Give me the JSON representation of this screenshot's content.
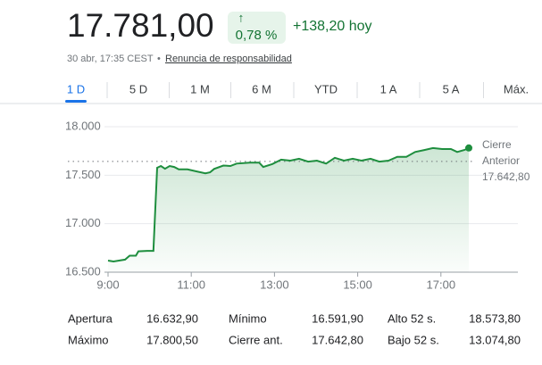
{
  "header": {
    "price": "17.781,00",
    "change_arrow": "↑",
    "change_percent": "0,78 %",
    "change_abs": "+138,20 hoy",
    "timestamp": "30 abr, 17:35 CEST",
    "separator": "•",
    "disclaimer": "Renuncia de responsabilidad"
  },
  "tabs": [
    "1 D",
    "5 D",
    "1 M",
    "6 M",
    "YTD",
    "1 A",
    "5 A",
    "Máx."
  ],
  "chart_data": {
    "type": "line",
    "color": "#1e8e3e",
    "x": [
      9.0,
      9.13,
      9.41,
      9.52,
      9.67,
      9.73,
      9.94,
      10.09,
      10.18,
      10.27,
      10.37,
      10.48,
      10.59,
      10.7,
      10.91,
      11.12,
      11.34,
      11.45,
      11.55,
      11.77,
      11.94,
      12.09,
      12.41,
      12.63,
      12.73,
      12.95,
      13.16,
      13.38,
      13.59,
      13.81,
      14.02,
      14.24,
      14.45,
      14.67,
      14.88,
      15.09,
      15.31,
      15.52,
      15.74,
      15.95,
      16.17,
      16.38,
      16.6,
      16.81,
      17.03,
      17.24,
      17.39,
      17.56,
      17.67
    ],
    "values": [
      16620,
      16610,
      16630,
      16670,
      16670,
      16715,
      16720,
      16720,
      17577,
      17595,
      17567,
      17595,
      17585,
      17560,
      17560,
      17540,
      17520,
      17530,
      17565,
      17600,
      17595,
      17620,
      17630,
      17630,
      17585,
      17615,
      17660,
      17650,
      17670,
      17640,
      17650,
      17620,
      17680,
      17650,
      17670,
      17650,
      17670,
      17640,
      17650,
      17690,
      17690,
      17740,
      17760,
      17780,
      17770,
      17770,
      17740,
      17760,
      17781
    ],
    "xlim": [
      9,
      18.85
    ],
    "xticks": [
      {
        "value": 9,
        "label": "9:00"
      },
      {
        "value": 11,
        "label": "11:00"
      },
      {
        "value": 13,
        "label": "13:00"
      },
      {
        "value": 15,
        "label": "15:00"
      },
      {
        "value": 17,
        "label": "17:00"
      }
    ],
    "ylim": [
      16500,
      18000
    ],
    "yticks": [
      {
        "value": 16500,
        "label": "16.500"
      },
      {
        "value": 17000,
        "label": "17.000"
      },
      {
        "value": 17500,
        "label": "17.500"
      },
      {
        "value": 18000,
        "label": "18.000"
      }
    ],
    "grid": true,
    "reference_value": 17642.8,
    "reference_label": [
      "Cierre",
      "Anterior"
    ],
    "reference_value_label": "17.642,80"
  },
  "stats": {
    "rows": [
      [
        "Apertura",
        "16.632,90",
        "Mínimo",
        "16.591,90",
        "Alto 52 s.",
        "18.573,80"
      ],
      [
        "Máximo",
        "17.800,50",
        "Cierre ant.",
        "17.642,80",
        "Bajo 52 s.",
        "13.074,80"
      ]
    ]
  }
}
